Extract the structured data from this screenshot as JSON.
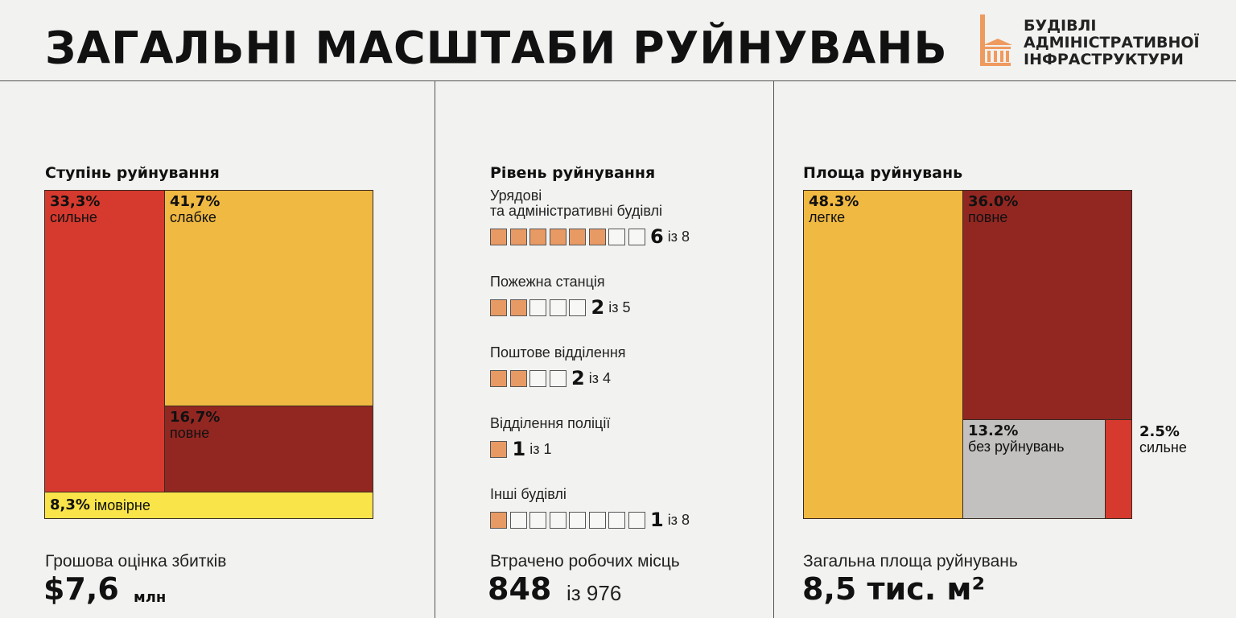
{
  "title": "ЗАГАЛЬНІ МАСШТАБИ РУЙНУВАНЬ",
  "logo": {
    "line1": "БУДІВЛІ",
    "line2": "АДМІНІСТРАТИВНОЇ",
    "line3": "ІНФРАСТРУКТУРИ",
    "color": "#ef9a5e"
  },
  "colors": {
    "red": "#d63a2e",
    "orange": "#f0b942",
    "darkred": "#922722",
    "yellow": "#f9e44a",
    "grey": "#c2c1bf",
    "square": "#e89a64"
  },
  "chart_data": [
    {
      "type": "treemap",
      "title": "Ступінь руйнування",
      "items": [
        {
          "name": "сильне",
          "value": 33.3,
          "label": "33,3%"
        },
        {
          "name": "слабке",
          "value": 41.7,
          "label": "41,7%"
        },
        {
          "name": "повне",
          "value": 16.7,
          "label": "16,7%"
        },
        {
          "name": "імовірне",
          "value": 8.3,
          "label": "8,3%"
        }
      ]
    },
    {
      "type": "table",
      "title": "Рівень руйнування",
      "of_word": "із",
      "categories": [
        {
          "name": "Урядові\nта адміністративні будівлі",
          "value": 6,
          "total": 8
        },
        {
          "name": "Пожежна станція",
          "value": 2,
          "total": 5
        },
        {
          "name": "Поштове відділення",
          "value": 2,
          "total": 4
        },
        {
          "name": "Відділення поліції",
          "value": 1,
          "total": 1
        },
        {
          "name": "Інші будівлі",
          "value": 1,
          "total": 8
        }
      ]
    },
    {
      "type": "treemap",
      "title": "Площа руйнувань",
      "items": [
        {
          "name": "легке",
          "value": 48.3,
          "label": "48.3%"
        },
        {
          "name": "повне",
          "value": 36.0,
          "label": "36.0%"
        },
        {
          "name": "без руйнувань",
          "value": 13.2,
          "label": "13.2%"
        },
        {
          "name": "сильне",
          "value": 2.5,
          "label": "2.5%"
        }
      ]
    }
  ],
  "stats": {
    "damage": {
      "label": "Грошова оцінка збитків",
      "value": "$7,6",
      "unit": "млн"
    },
    "jobs": {
      "label": "Втрачено робочих місць",
      "value": "848",
      "of": "із 976"
    },
    "area": {
      "label": "Загальна площа руйнувань",
      "value": "8,5 тис. м²"
    }
  }
}
